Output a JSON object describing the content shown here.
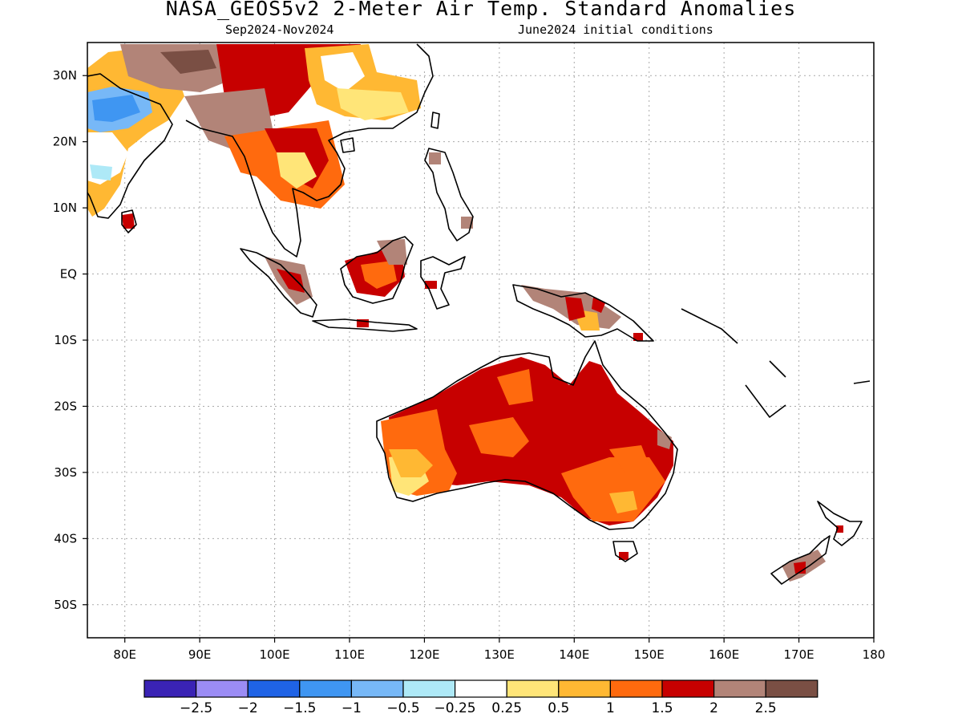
{
  "title": "NASA_GEOS5v2 2-Meter Air Temp. Standard Anomalies",
  "subtitle_left": "Sep2024-Nov2024",
  "subtitle_right": "June2024 initial conditions",
  "lat_labels": [
    "30N",
    "20N",
    "10N",
    "EQ",
    "10S",
    "20S",
    "30S",
    "40S",
    "50S"
  ],
  "lat_values": [
    30,
    20,
    10,
    0,
    -10,
    -20,
    -30,
    -40,
    -50
  ],
  "lon_labels": [
    "80E",
    "90E",
    "100E",
    "110E",
    "120E",
    "130E",
    "140E",
    "150E",
    "160E",
    "170E",
    "180"
  ],
  "lon_values": [
    80,
    90,
    100,
    110,
    120,
    130,
    140,
    150,
    160,
    170,
    180
  ],
  "map_extent": {
    "lon": [
      75,
      180
    ],
    "lat": [
      -55,
      35
    ]
  },
  "colorbar": {
    "colors": [
      "#3a23b5",
      "#9b8cf5",
      "#1f63e6",
      "#3f96f2",
      "#77b8f7",
      "#aee9f7",
      "#ffffff",
      "#ffe578",
      "#ffb833",
      "#ff6a0e",
      "#c70000",
      "#b28478",
      "#7a4f44"
    ],
    "labels": [
      "-2.5",
      "-2",
      "-1.5",
      "-1",
      "-0.5",
      "-0.25",
      "0.25",
      "0.5",
      "1",
      "1.5",
      "2",
      "2.5"
    ]
  }
}
